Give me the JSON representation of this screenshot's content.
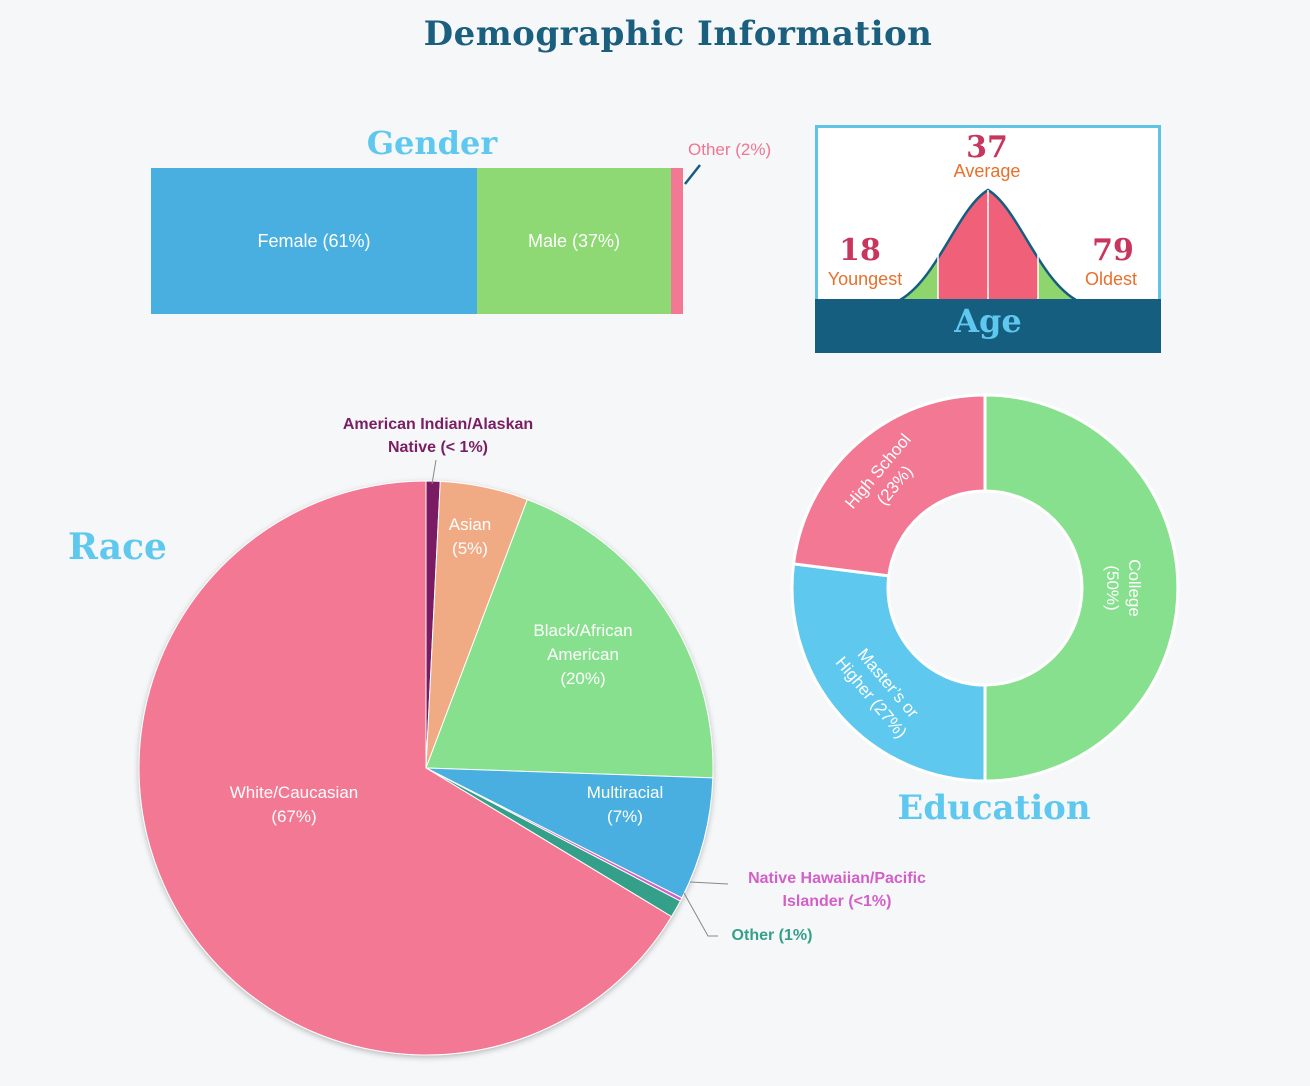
{
  "title": "Demographic Information",
  "gender": {
    "title": "Gender",
    "female_label": "Female (61%)",
    "male_label": "Male (37%)",
    "other_label": "Other (2%)"
  },
  "age": {
    "title": "Age",
    "average_value": "37",
    "average_label": "Average",
    "youngest_value": "18",
    "youngest_label": "Youngest",
    "oldest_value": "79",
    "oldest_label": "Oldest"
  },
  "race": {
    "title": "Race",
    "white_label": [
      "White/Caucasian",
      "(67%)"
    ],
    "asian_label": [
      "Asian",
      "(5%)"
    ],
    "black_label": [
      "Black/African",
      "American",
      "(20%)"
    ],
    "multiracial_label": [
      "Multiracial",
      "(7%)"
    ],
    "american_indian_label": [
      "American Indian/Alaskan",
      "Native (< 1%)"
    ],
    "hawaiian_label": [
      "Native Hawaiian/Pacific",
      "Islander (<1%)"
    ],
    "other_label": "Other (1%)"
  },
  "education": {
    "title": "Education",
    "college_label": [
      "College",
      "(50%)"
    ],
    "masters_label": [
      "Master’s or",
      "Higher (27%)"
    ],
    "highschool_label": [
      "High School",
      "(23%)"
    ]
  },
  "colors": {
    "pink": "#f27893",
    "green": "#87e08d",
    "blue": "#48afe0",
    "orange": "#f0ab85",
    "purple": "#7a1e63",
    "teal": "#35a08a",
    "dark": "#155e80"
  },
  "chart_data": [
    {
      "type": "bar",
      "title": "Gender",
      "orientation": "stacked-horizontal",
      "categories": [
        "Female",
        "Male",
        "Other"
      ],
      "values": [
        61,
        37,
        2
      ],
      "unit": "%"
    },
    {
      "type": "pie",
      "title": "Race",
      "categories": [
        "American Indian/Alaskan Native",
        "Asian",
        "Black/African American",
        "Multiracial",
        "Native Hawaiian/Pacific Islander",
        "Other",
        "White/Caucasian"
      ],
      "values": [
        0.8,
        5,
        20,
        7,
        0.2,
        1,
        67
      ],
      "unit": "%"
    },
    {
      "type": "pie",
      "title": "Education",
      "variant": "donut",
      "categories": [
        "College",
        "Master’s or Higher",
        "High School"
      ],
      "values": [
        50,
        27,
        23
      ],
      "unit": "%"
    },
    {
      "type": "table",
      "title": "Age",
      "categories": [
        "Youngest",
        "Average",
        "Oldest"
      ],
      "values": [
        18,
        37,
        79
      ]
    }
  ]
}
